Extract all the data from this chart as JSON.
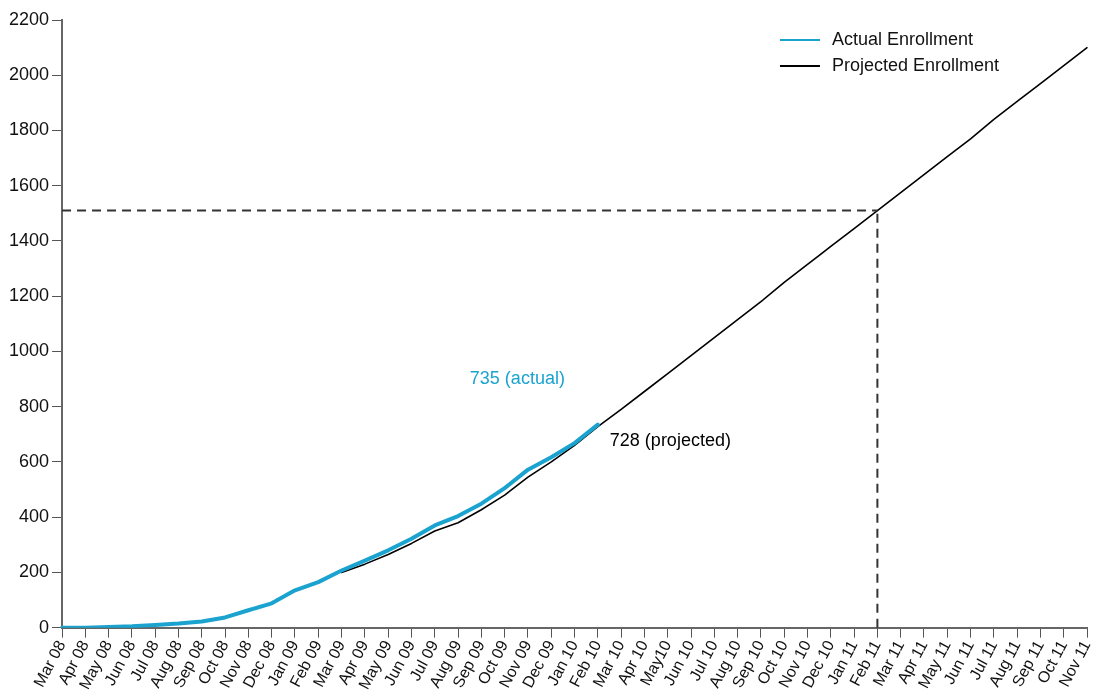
{
  "chart_data": {
    "type": "line",
    "categories": [
      "Mar 08",
      "Apr 08",
      "May 08",
      "Jun 08",
      "Jul 08",
      "Aug 08",
      "Sep 08",
      "Oct 08",
      "Nov 08",
      "Dec 08",
      "Jan 09",
      "Feb 09",
      "Mar 09",
      "Apr 09",
      "May 09",
      "Jun 09",
      "Jul 09",
      "Aug 09",
      "Sep 09",
      "Oct 09",
      "Nov 09",
      "Dec 09",
      "Jan 10",
      "Feb 10",
      "Mar 10",
      "Apr 10",
      "May10",
      "Jun 10",
      "Jul 10",
      "Aug 10",
      "Sep 10",
      "Oct 10",
      "Nov 10",
      "Dec 10",
      "Jan 11",
      "Feb 11",
      "Mar 11",
      "Apr 11",
      "May 11",
      "Jun 11",
      "Jul 11",
      "Aug 11",
      "Sep 11",
      "Oct 11",
      "Nov 11"
    ],
    "series": [
      {
        "name": "Actual Enrollment",
        "color": "#1ba3cf",
        "values": [
          0,
          0,
          2,
          5,
          10,
          15,
          22,
          37,
          63,
          88,
          135,
          165,
          207,
          243,
          280,
          322,
          370,
          404,
          449,
          505,
          572,
          617,
          668,
          735,
          null,
          null,
          null,
          null,
          null,
          null,
          null,
          null,
          null,
          null,
          null,
          null,
          null,
          null,
          null,
          null,
          null,
          null,
          null,
          null,
          null
        ]
      },
      {
        "name": "Projected Enrollment",
        "color": "#000000",
        "values": [
          null,
          null,
          null,
          null,
          null,
          null,
          null,
          null,
          null,
          null,
          null,
          null,
          200,
          230,
          265,
          305,
          350,
          380,
          427,
          480,
          545,
          600,
          660,
          728,
          790,
          855,
          920,
          985,
          1050,
          1115,
          1180,
          1250,
          1315,
          1380,
          1445,
          1510,
          1575,
          1640,
          1705,
          1770,
          1840,
          1905,
          1970,
          2035,
          2100
        ]
      }
    ],
    "ylim": [
      0,
      2200
    ],
    "yticks": [
      0,
      200,
      400,
      600,
      800,
      1000,
      1200,
      1400,
      1600,
      1800,
      2000,
      2200
    ],
    "grid": false,
    "legend": "top right",
    "marker": "none",
    "line_style": "solid",
    "ref_lines": [
      {
        "axis": "y",
        "value": 1510,
        "color": "#333333",
        "line_style": "dashed"
      },
      {
        "axis": "x",
        "value": "Feb 11",
        "color": "#333333",
        "line_style": "dashed"
      }
    ],
    "annotations": [
      "735 (actual)",
      "728 (projected)"
    ]
  }
}
